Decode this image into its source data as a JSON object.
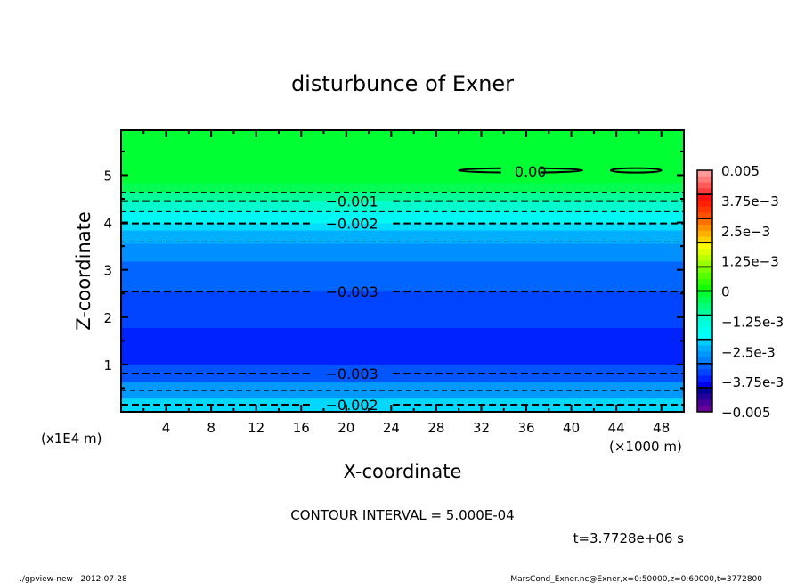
{
  "chart_data": {
    "type": "heatmap",
    "subtype": "filled-contour",
    "title": "disturbunce of Exner",
    "xlabel": "X-coordinate",
    "ylabel": "Z-coordinate",
    "x_unit_label": "(×1000 m)",
    "y_unit_label": "(x1E4 m)",
    "xlim": [
      0,
      50
    ],
    "ylim": [
      0,
      5.95
    ],
    "x_ticks": [
      4,
      8,
      12,
      16,
      20,
      24,
      28,
      32,
      36,
      40,
      44,
      48
    ],
    "y_ticks": [
      1,
      2,
      3,
      4,
      5
    ],
    "contour_interval_text": "CONTOUR INTERVAL = 5.000E-04",
    "time_text": "t=3.7728e+06 s",
    "bands": [
      {
        "z0": 4.83,
        "z1": 5.95,
        "color": "#00ff33"
      },
      {
        "z0": 4.64,
        "z1": 4.83,
        "color": "#00ff55"
      },
      {
        "z0": 4.45,
        "z1": 4.64,
        "color": "#00ff99"
      },
      {
        "z0": 4.23,
        "z1": 4.45,
        "color": "#00ffcc"
      },
      {
        "z0": 3.98,
        "z1": 4.23,
        "color": "#00f8f4"
      },
      {
        "z0": 3.83,
        "z1": 3.98,
        "color": "#00ddff"
      },
      {
        "z0": 3.55,
        "z1": 3.83,
        "color": "#00b0ff"
      },
      {
        "z0": 3.17,
        "z1": 3.55,
        "color": "#0090ff"
      },
      {
        "z0": 2.54,
        "z1": 3.17,
        "color": "#0066ff"
      },
      {
        "z0": 1.77,
        "z1": 2.54,
        "color": "#0044ff"
      },
      {
        "z0": 1.0,
        "z1": 1.77,
        "color": "#0022ff"
      },
      {
        "z0": 0.62,
        "z1": 1.0,
        "color": "#0055ff"
      },
      {
        "z0": 0.28,
        "z1": 0.62,
        "color": "#0099ff"
      },
      {
        "z0": 0.0,
        "z1": 0.28,
        "color": "#00d8ff"
      }
    ],
    "contours": [
      {
        "level": -0.0005,
        "z": 4.64,
        "label": ""
      },
      {
        "level": -0.001,
        "z": 4.45,
        "label": "-0.001"
      },
      {
        "level": -0.0015,
        "z": 4.23,
        "label": ""
      },
      {
        "level": -0.002,
        "z": 3.98,
        "label": "-0.002"
      },
      {
        "level": -0.0025,
        "z": 3.59,
        "label": ""
      },
      {
        "level": -0.003,
        "z": 2.54,
        "label": "-0.003"
      },
      {
        "level": -0.003,
        "z": 0.81,
        "label": "-0.003"
      },
      {
        "level": -0.0025,
        "z": 0.45,
        "label": ""
      },
      {
        "level": -0.002,
        "z": 0.15,
        "label": "-0.002"
      }
    ],
    "zero_contour": {
      "label": "0.00",
      "x_ranges": [
        [
          30,
          41
        ],
        [
          43.5,
          48
        ]
      ],
      "z": 5.1
    },
    "colorbar": {
      "labels": [
        "0.005",
        "3.75e-3",
        "2.5e-3",
        "1.25e-3",
        "0",
        "-1.25e-3",
        "-2.5e-3",
        "-3.75e-3",
        "-0.005"
      ],
      "groups": [
        [
          "#ff9a9a",
          "#ff7a7a",
          "#ff5a5a",
          "#ff3a3a"
        ],
        [
          "#ff1010",
          "#ff2000",
          "#ff3800",
          "#ff5000"
        ],
        [
          "#ff7000",
          "#ff9000",
          "#ffb000",
          "#ffd000"
        ],
        [
          "#ffff00",
          "#ddff00",
          "#bbff00",
          "#99ff00"
        ],
        [
          "#77ff00",
          "#55ff00",
          "#33ff00",
          "#11ff00"
        ],
        [
          "#00ff33",
          "#00ff55",
          "#00ff77",
          "#00ff99"
        ],
        [
          "#00ffcc",
          "#00ffdd",
          "#00ffee",
          "#00ffff"
        ],
        [
          "#00ccff",
          "#00b0ff",
          "#0098ff",
          "#0080ff"
        ],
        [
          "#0060ff",
          "#0044ff",
          "#0022ff",
          "#0000ee"
        ],
        [
          "#000099",
          "#220099",
          "#440099",
          "#660099"
        ]
      ]
    }
  },
  "footer": {
    "left": "./gpview-new   2012-07-28",
    "right": "MarsCond_Exner.nc@Exner,x=0:50000,z=0:60000,t=3772800"
  }
}
